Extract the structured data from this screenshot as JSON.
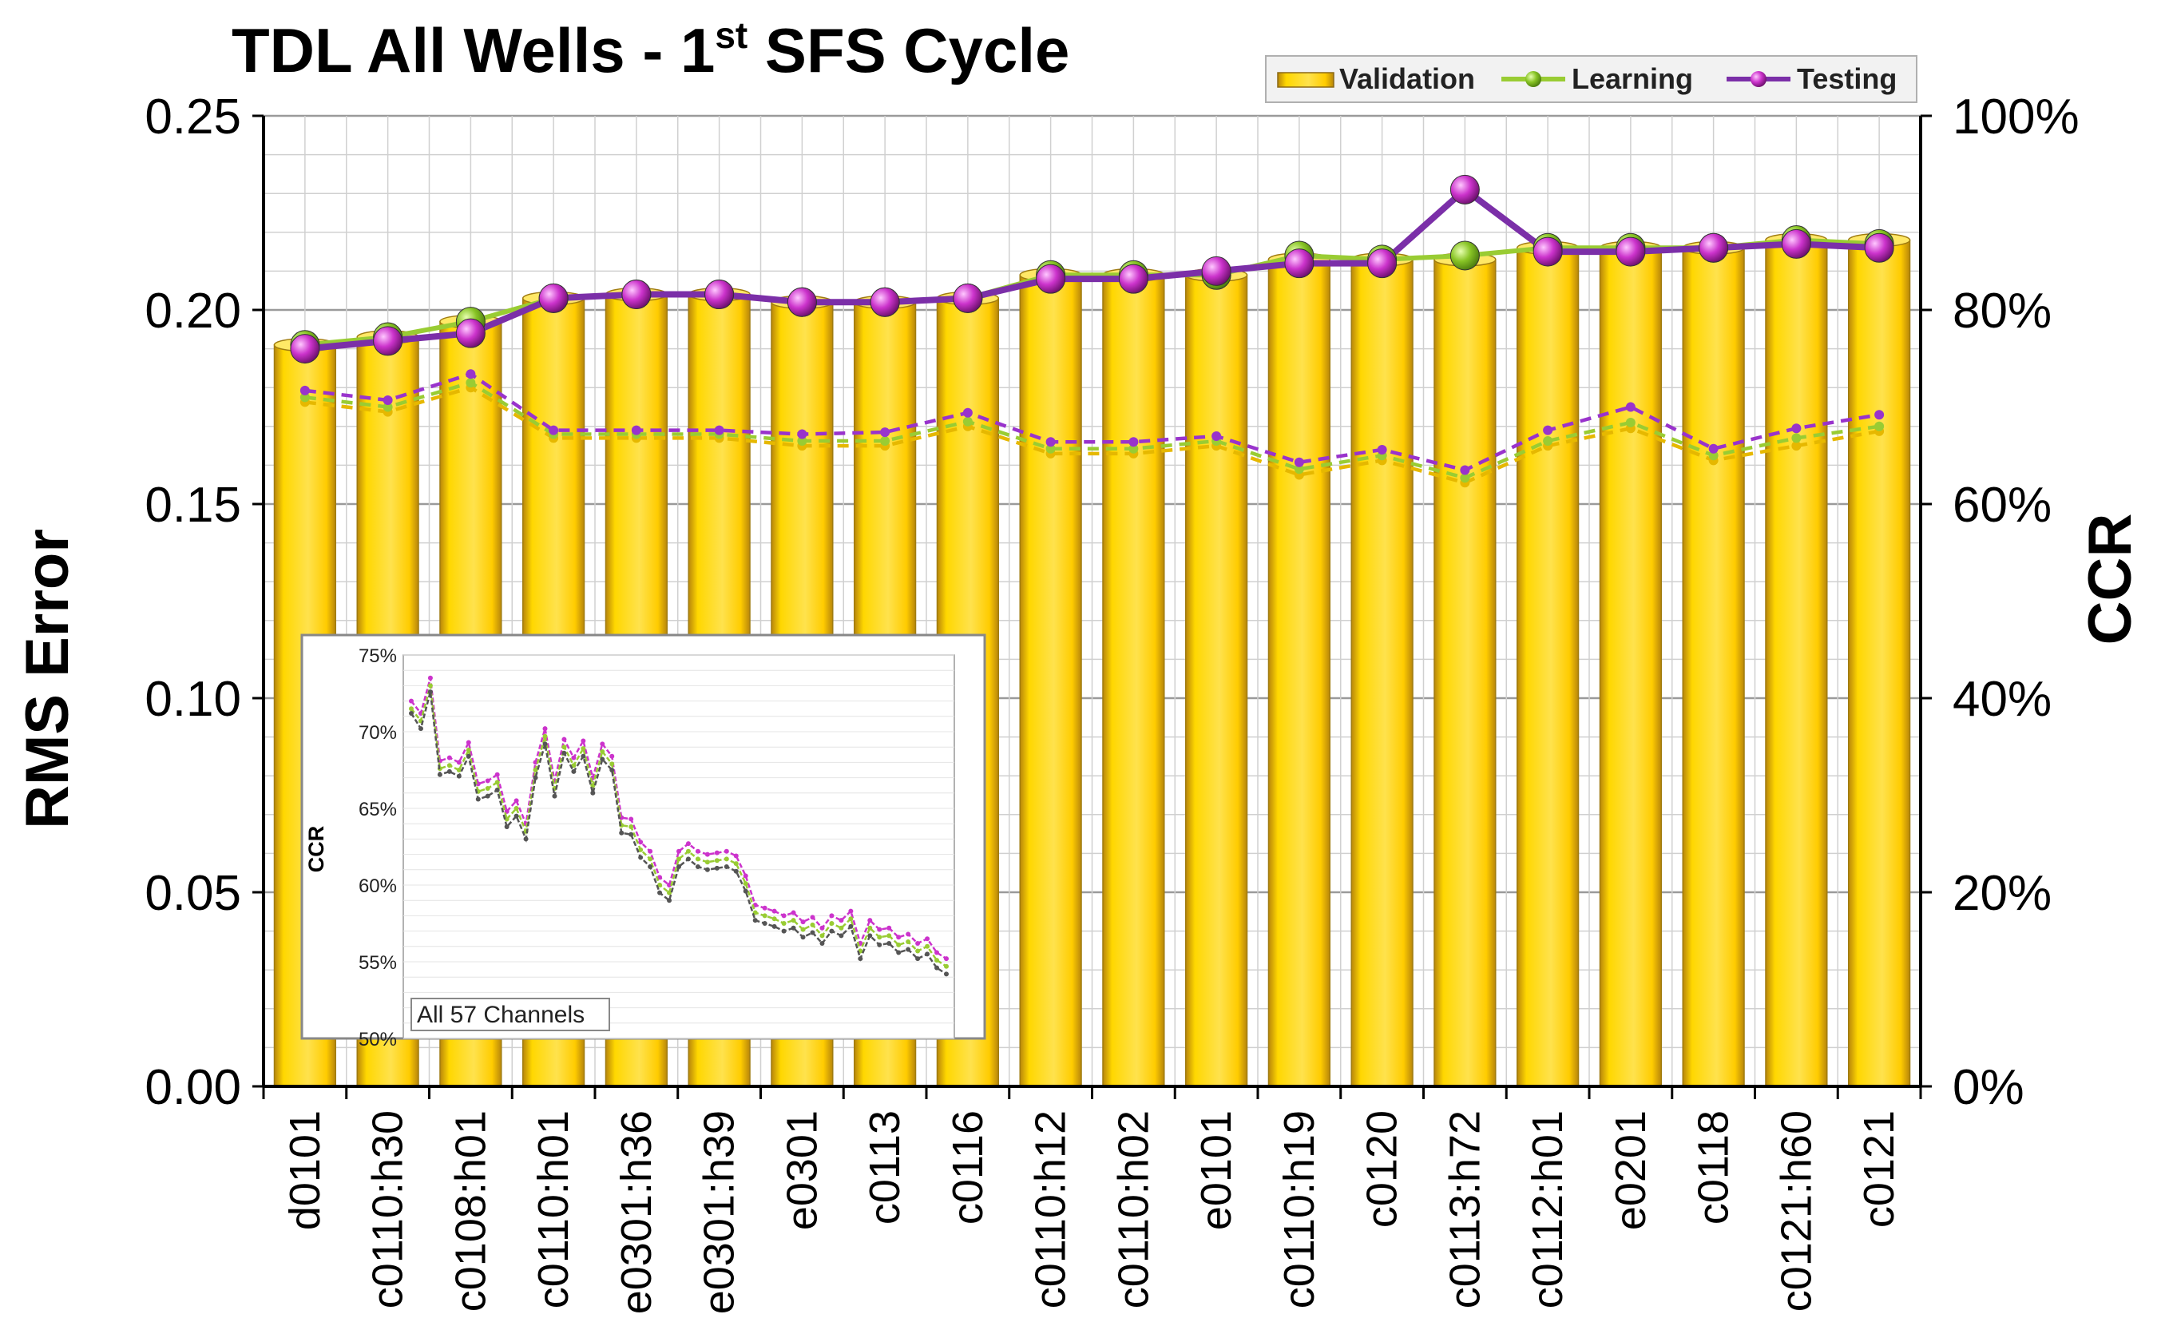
{
  "chart_data": {
    "type": "bar",
    "title": "TDL All Wells - 1st SFS Cycle",
    "title_main": "TDL All Wells - 1",
    "title_sup": "st",
    "title_tail": " SFS Cycle",
    "ylabel": "RMS Error",
    "y2label": "CCR",
    "ylim": [
      0,
      0.25
    ],
    "y2lim": [
      0,
      1
    ],
    "yticks": [
      "0.00",
      "0.05",
      "0.10",
      "0.15",
      "0.20",
      "0.25"
    ],
    "y2ticks": [
      "0%",
      "20%",
      "40%",
      "60%",
      "80%",
      "100%"
    ],
    "grid": true,
    "legend_position": "top-right",
    "categories": [
      "d0101",
      "c0110:h30",
      "c0108:h01",
      "c0110:h01",
      "e0301:h36",
      "e0301:h39",
      "e0301",
      "c0113",
      "c0116",
      "c0110:h12",
      "c0110:h02",
      "e0101",
      "c0110:h19",
      "c0120",
      "c0113:h72",
      "c0112:h01",
      "e0201",
      "c0118",
      "c0121:h60",
      "c0121"
    ],
    "series": [
      {
        "name": "Validation",
        "kind": "bar",
        "axis": "left",
        "color": "#FFCC00",
        "values": [
          0.191,
          0.193,
          0.197,
          0.203,
          0.204,
          0.204,
          0.202,
          0.202,
          0.203,
          0.209,
          0.209,
          0.209,
          0.213,
          0.213,
          0.213,
          0.216,
          0.216,
          0.216,
          0.218,
          0.218
        ]
      },
      {
        "name": "Learning",
        "kind": "line",
        "axis": "left",
        "color": "#99CC33",
        "values": [
          0.191,
          0.193,
          0.197,
          0.203,
          0.204,
          0.204,
          0.202,
          0.202,
          0.203,
          0.209,
          0.209,
          0.209,
          0.214,
          0.213,
          0.214,
          0.216,
          0.216,
          0.216,
          0.218,
          0.217
        ]
      },
      {
        "name": "Testing",
        "kind": "line",
        "axis": "left",
        "color": "#7B2FA8",
        "values": [
          0.19,
          0.192,
          0.194,
          0.203,
          0.204,
          0.204,
          0.202,
          0.202,
          0.203,
          0.208,
          0.208,
          0.21,
          0.212,
          0.212,
          0.231,
          0.215,
          0.215,
          0.216,
          0.217,
          0.216
        ]
      },
      {
        "name": "Validation CCR",
        "kind": "dashed-line",
        "axis": "right",
        "color": "#E6B800",
        "show_in_legend": false,
        "values": [
          0.705,
          0.695,
          0.72,
          0.668,
          0.668,
          0.668,
          0.66,
          0.66,
          0.68,
          0.652,
          0.652,
          0.66,
          0.63,
          0.645,
          0.622,
          0.66,
          0.678,
          0.645,
          0.66,
          0.675
        ]
      },
      {
        "name": "Learning CCR",
        "kind": "dashed-line",
        "axis": "right",
        "color": "#99CC33",
        "show_in_legend": false,
        "values": [
          0.71,
          0.7,
          0.725,
          0.672,
          0.672,
          0.672,
          0.665,
          0.665,
          0.685,
          0.657,
          0.657,
          0.665,
          0.636,
          0.65,
          0.627,
          0.665,
          0.684,
          0.65,
          0.668,
          0.68
        ]
      },
      {
        "name": "Testing CCR",
        "kind": "dashed-line",
        "axis": "right",
        "color": "#9933CC",
        "show_in_legend": false,
        "values": [
          0.717,
          0.707,
          0.734,
          0.676,
          0.676,
          0.676,
          0.672,
          0.674,
          0.694,
          0.664,
          0.664,
          0.67,
          0.643,
          0.656,
          0.635,
          0.676,
          0.7,
          0.657,
          0.678,
          0.692
        ]
      }
    ],
    "inset": {
      "type": "line",
      "ylabel": "CCR",
      "ylim": [
        0.5,
        0.75
      ],
      "yticks": [
        "50%",
        "55%",
        "60%",
        "65%",
        "70%",
        "75%"
      ],
      "annotation": "All 57 Channels",
      "series": [
        {
          "name": "Testing",
          "color": "#CC33CC",
          "values": [
            0.72,
            0.712,
            0.735,
            0.681,
            0.683,
            0.68,
            0.693,
            0.666,
            0.668,
            0.672,
            0.648,
            0.655,
            0.64,
            0.68,
            0.702,
            0.668,
            0.695,
            0.683,
            0.694,
            0.67,
            0.692,
            0.684,
            0.644,
            0.643,
            0.628,
            0.622,
            0.605,
            0.6,
            0.622,
            0.627,
            0.622,
            0.62,
            0.621,
            0.622,
            0.619,
            0.606,
            0.587,
            0.585,
            0.583,
            0.58,
            0.582,
            0.576,
            0.579,
            0.572,
            0.58,
            0.577,
            0.583,
            0.562,
            0.577,
            0.571,
            0.572,
            0.566,
            0.568,
            0.562,
            0.565,
            0.556,
            0.552
          ]
        },
        {
          "name": "Learning",
          "color": "#99CC33",
          "values": [
            0.715,
            0.707,
            0.73,
            0.676,
            0.678,
            0.675,
            0.688,
            0.661,
            0.663,
            0.667,
            0.643,
            0.65,
            0.635,
            0.675,
            0.697,
            0.663,
            0.69,
            0.678,
            0.689,
            0.665,
            0.687,
            0.679,
            0.639,
            0.638,
            0.623,
            0.617,
            0.6,
            0.595,
            0.617,
            0.622,
            0.617,
            0.615,
            0.616,
            0.617,
            0.614,
            0.601,
            0.582,
            0.58,
            0.578,
            0.575,
            0.577,
            0.571,
            0.574,
            0.567,
            0.575,
            0.572,
            0.578,
            0.557,
            0.572,
            0.566,
            0.567,
            0.561,
            0.563,
            0.557,
            0.56,
            0.551,
            0.547
          ]
        },
        {
          "name": "Validation",
          "color": "#555555",
          "values": [
            0.712,
            0.702,
            0.726,
            0.672,
            0.674,
            0.671,
            0.684,
            0.656,
            0.658,
            0.662,
            0.638,
            0.645,
            0.63,
            0.67,
            0.692,
            0.658,
            0.686,
            0.674,
            0.684,
            0.66,
            0.682,
            0.675,
            0.634,
            0.633,
            0.618,
            0.612,
            0.595,
            0.59,
            0.612,
            0.617,
            0.612,
            0.61,
            0.611,
            0.612,
            0.609,
            0.596,
            0.577,
            0.575,
            0.573,
            0.57,
            0.572,
            0.566,
            0.569,
            0.562,
            0.57,
            0.567,
            0.573,
            0.552,
            0.567,
            0.561,
            0.562,
            0.556,
            0.558,
            0.552,
            0.555,
            0.546,
            0.542
          ]
        }
      ]
    }
  }
}
